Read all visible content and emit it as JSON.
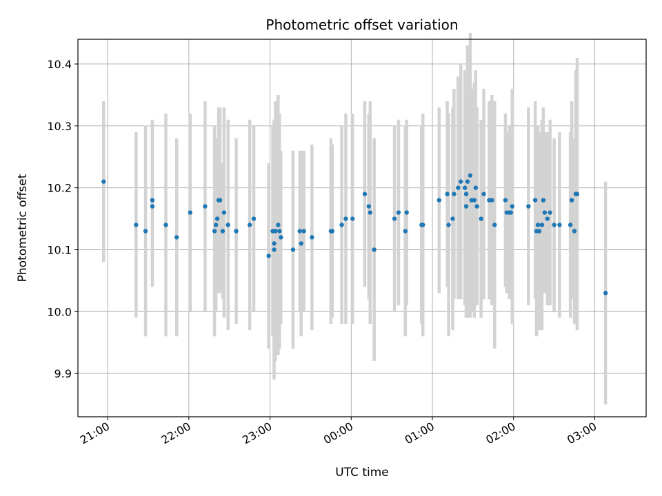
{
  "chart_data": {
    "type": "scatter",
    "title": "Photometric offset variation",
    "xlabel": "UTC time",
    "ylabel": "Photometric offset",
    "x_axis_type": "time",
    "x_ticks": [
      "21:00",
      "22:00",
      "23:00",
      "00:00",
      "01:00",
      "02:00",
      "03:00"
    ],
    "y_ticks": [
      "9.9",
      "10.0",
      "10.1",
      "10.2",
      "10.3",
      "10.4"
    ],
    "xlim": [
      "20:38",
      "03:38"
    ],
    "ylim": [
      9.83,
      10.44
    ],
    "grid": true,
    "colors": {
      "point": "#1f77b4",
      "errorbar": "#d3d3d3",
      "grid": "#b0b0b0"
    },
    "series": [
      {
        "x": [
          "20:57",
          "21:21",
          "21:28",
          "21:33",
          "21:33",
          "21:43",
          "21:51",
          "22:01",
          "22:12",
          "22:19",
          "22:20",
          "22:21",
          "22:22",
          "22:23",
          "22:25",
          "22:26",
          "22:29",
          "22:35",
          "22:45",
          "22:48",
          "22:59",
          "23:02",
          "23:03",
          "23:03",
          "23:04",
          "23:06",
          "23:07",
          "23:08",
          "23:17",
          "23:22",
          "23:23",
          "23:25",
          "23:31",
          "23:45",
          "23:46",
          "23:53",
          "23:56",
          "00:01",
          "00:10",
          "00:13",
          "00:14",
          "00:17",
          "00:32",
          "00:35",
          "00:40",
          "00:41",
          "00:52",
          "00:53",
          "01:05",
          "01:11",
          "01:12",
          "01:15",
          "01:16",
          "01:19",
          "01:21",
          "01:24",
          "01:25",
          "01:25",
          "01:26",
          "01:28",
          "01:29",
          "01:31",
          "01:32",
          "01:33",
          "01:36",
          "01:38",
          "01:42",
          "01:44",
          "01:46",
          "01:54",
          "01:55",
          "01:57",
          "01:58",
          "01:59",
          "02:11",
          "02:16",
          "02:17",
          "02:18",
          "02:19",
          "02:21",
          "02:22",
          "02:23",
          "02:25",
          "02:27",
          "02:30",
          "02:34",
          "02:42",
          "02:43",
          "02:45",
          "02:46",
          "02:47",
          "03:08"
        ],
        "y": [
          10.21,
          10.14,
          10.13,
          10.18,
          10.17,
          10.14,
          10.12,
          10.16,
          10.17,
          10.13,
          10.14,
          10.15,
          10.18,
          10.18,
          10.13,
          10.16,
          10.14,
          10.13,
          10.14,
          10.15,
          10.09,
          10.13,
          10.1,
          10.11,
          10.13,
          10.14,
          10.13,
          10.12,
          10.1,
          10.13,
          10.11,
          10.13,
          10.12,
          10.13,
          10.13,
          10.14,
          10.15,
          10.15,
          10.19,
          10.17,
          10.16,
          10.1,
          10.15,
          10.16,
          10.13,
          10.16,
          10.14,
          10.14,
          10.18,
          10.19,
          10.14,
          10.15,
          10.19,
          10.2,
          10.21,
          10.2,
          10.17,
          10.19,
          10.21,
          10.22,
          10.18,
          10.18,
          10.2,
          10.17,
          10.15,
          10.19,
          10.18,
          10.18,
          10.14,
          10.18,
          10.16,
          10.16,
          10.16,
          10.17,
          10.17,
          10.18,
          10.13,
          10.14,
          10.13,
          10.14,
          10.18,
          10.16,
          10.15,
          10.16,
          10.14,
          10.14,
          10.14,
          10.18,
          10.13,
          10.19,
          10.19,
          10.03
        ],
        "err": [
          0.13,
          0.15,
          0.17,
          0.13,
          0.13,
          0.18,
          0.16,
          0.16,
          0.17,
          0.17,
          0.14,
          0.12,
          0.15,
          0.15,
          0.11,
          0.17,
          0.17,
          0.15,
          0.17,
          0.15,
          0.15,
          0.17,
          0.21,
          0.2,
          0.21,
          0.21,
          0.19,
          0.14,
          0.16,
          0.13,
          0.15,
          0.13,
          0.15,
          0.15,
          0.14,
          0.16,
          0.17,
          0.17,
          0.15,
          0.15,
          0.18,
          0.18,
          0.15,
          0.15,
          0.17,
          0.15,
          0.16,
          0.18,
          0.15,
          0.15,
          0.18,
          0.18,
          0.17,
          0.18,
          0.19,
          0.19,
          0.18,
          0.2,
          0.22,
          0.23,
          0.18,
          0.19,
          0.19,
          0.16,
          0.16,
          0.17,
          0.16,
          0.17,
          0.2,
          0.14,
          0.13,
          0.14,
          0.14,
          0.19,
          0.16,
          0.16,
          0.17,
          0.16,
          0.16,
          0.17,
          0.15,
          0.13,
          0.14,
          0.15,
          0.14,
          0.15,
          0.15,
          0.16,
          0.15,
          0.2,
          0.22,
          0.18
        ]
      }
    ]
  }
}
